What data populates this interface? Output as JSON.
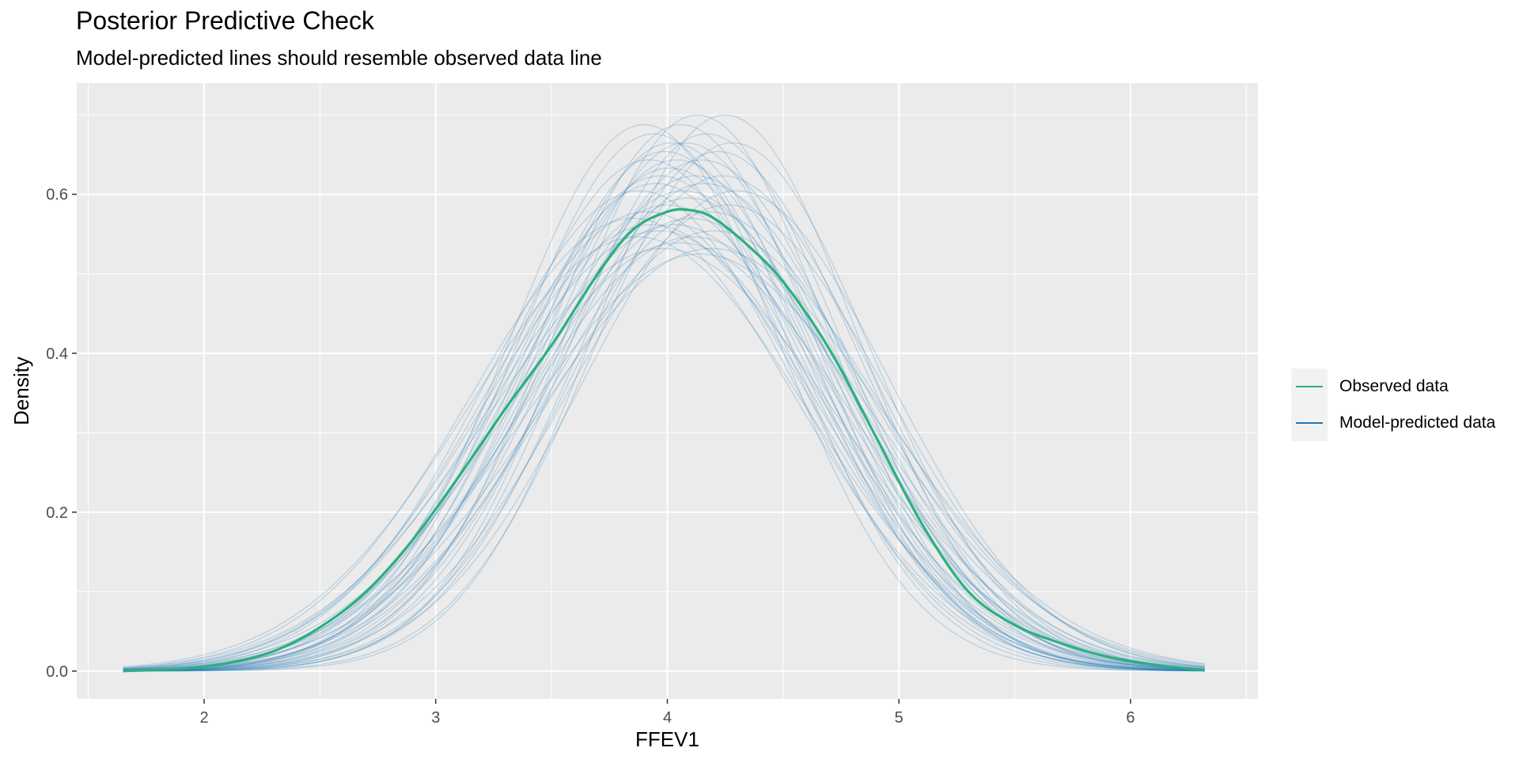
{
  "title": "Posterior Predictive Check",
  "subtitle": "Model-predicted lines should resemble observed data line",
  "colors": {
    "panel_bg": "#EBEBEB",
    "grid": "#FFFFFF",
    "observed": "#2BB07F",
    "predicted": "#1F78B4"
  },
  "legend": {
    "position": "right",
    "items": [
      {
        "label": "Observed data",
        "color": "#2BB07F",
        "icon": "line-key-icon"
      },
      {
        "label": "Model-predicted data",
        "color": "#1F78B4",
        "icon": "line-key-icon"
      }
    ]
  },
  "chart_data": {
    "type": "line",
    "title": "Posterior Predictive Check",
    "subtitle": "Model-predicted lines should resemble observed data line",
    "xlabel": "FFEV1",
    "ylabel": "Density",
    "xlim": [
      1.45,
      6.55
    ],
    "ylim": [
      -0.035,
      0.74
    ],
    "x_ticks": [
      2,
      3,
      4,
      5,
      6
    ],
    "y_ticks": [
      0.0,
      0.2,
      0.4,
      0.6
    ],
    "y_tick_labels": [
      "0.0",
      "0.2",
      "0.4",
      "0.6"
    ],
    "grid": true,
    "series": [
      {
        "name": "Observed data",
        "color": "#2BB07F",
        "x": [
          1.65,
          1.9,
          2.1,
          2.3,
          2.5,
          2.7,
          2.9,
          3.1,
          3.3,
          3.5,
          3.7,
          3.85,
          4.0,
          4.1,
          4.2,
          4.35,
          4.5,
          4.7,
          4.9,
          5.1,
          5.3,
          5.5,
          5.7,
          5.9,
          6.1,
          6.32
        ],
        "y": [
          0.0,
          0.003,
          0.01,
          0.025,
          0.055,
          0.1,
          0.165,
          0.245,
          0.33,
          0.41,
          0.5,
          0.555,
          0.578,
          0.58,
          0.57,
          0.535,
          0.49,
          0.405,
          0.295,
          0.185,
          0.1,
          0.058,
          0.035,
          0.018,
          0.008,
          0.001
        ]
      },
      {
        "name": "Model-predicted data",
        "color": "#1F78B4",
        "x_range": [
          1.65,
          6.32
        ],
        "draws": [
          {
            "mean": 4.02,
            "sd": 0.6
          },
          {
            "mean": 4.1,
            "sd": 0.7
          },
          {
            "mean": 3.95,
            "sd": 0.65
          },
          {
            "mean": 4.25,
            "sd": 0.57
          },
          {
            "mean": 4.05,
            "sd": 0.74
          },
          {
            "mean": 3.9,
            "sd": 0.58
          },
          {
            "mean": 4.15,
            "sd": 0.62
          },
          {
            "mean": 4.0,
            "sd": 0.68
          },
          {
            "mean": 4.2,
            "sd": 0.72
          },
          {
            "mean": 3.85,
            "sd": 0.7
          },
          {
            "mean": 4.08,
            "sd": 0.6
          },
          {
            "mean": 4.3,
            "sd": 0.66
          },
          {
            "mean": 3.98,
            "sd": 0.75
          },
          {
            "mean": 4.12,
            "sd": 0.64
          },
          {
            "mean": 3.92,
            "sd": 0.62
          },
          {
            "mean": 4.18,
            "sd": 0.69
          },
          {
            "mean": 4.03,
            "sd": 0.71
          },
          {
            "mean": 3.88,
            "sd": 0.66
          },
          {
            "mean": 4.22,
            "sd": 0.61
          },
          {
            "mean": 4.06,
            "sd": 0.58
          },
          {
            "mean": 3.96,
            "sd": 0.72
          },
          {
            "mean": 4.14,
            "sd": 0.76
          },
          {
            "mean": 4.26,
            "sd": 0.68
          },
          {
            "mean": 3.94,
            "sd": 0.59
          },
          {
            "mean": 4.09,
            "sd": 0.67
          },
          {
            "mean": 4.01,
            "sd": 0.63
          },
          {
            "mean": 3.87,
            "sd": 0.73
          },
          {
            "mean": 4.17,
            "sd": 0.59
          },
          {
            "mean": 4.11,
            "sd": 0.73
          },
          {
            "mean": 3.99,
            "sd": 0.61
          },
          {
            "mean": 4.24,
            "sd": 0.64
          },
          {
            "mean": 3.91,
            "sd": 0.69
          },
          {
            "mean": 4.07,
            "sd": 0.66
          },
          {
            "mean": 4.13,
            "sd": 0.57
          },
          {
            "mean": 3.97,
            "sd": 0.64
          },
          {
            "mean": 4.19,
            "sd": 0.75
          },
          {
            "mean": 4.04,
            "sd": 0.62
          },
          {
            "mean": 3.93,
            "sd": 0.71
          },
          {
            "mean": 4.16,
            "sd": 0.65
          },
          {
            "mean": 4.28,
            "sd": 0.6
          }
        ]
      }
    ]
  }
}
